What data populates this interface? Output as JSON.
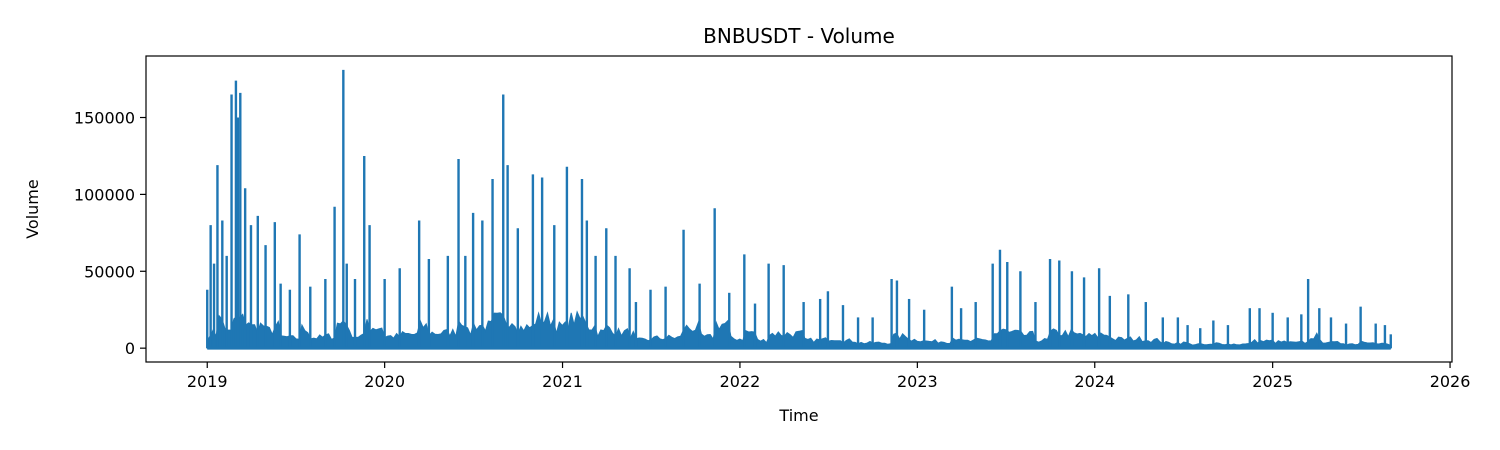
{
  "chart_data": {
    "type": "line",
    "title": "BNBUSDT - Volume",
    "xlabel": "Time",
    "ylabel": "Volume",
    "xlim": [
      "2018-08-28",
      "2026-01-05"
    ],
    "ylim": [
      -9000,
      190000
    ],
    "x_ticks": [
      "2019",
      "2020",
      "2021",
      "2022",
      "2023",
      "2024",
      "2025",
      "2026"
    ],
    "y_ticks": [
      0,
      50000,
      100000,
      150000
    ],
    "y_tick_labels": [
      "0",
      "50000",
      "100000",
      "150000"
    ],
    "grid": false,
    "series": [
      {
        "color": "#1f77b4",
        "x": [
          "2019-01-01",
          "2019-01-08",
          "2019-01-15",
          "2019-01-22",
          "2019-02-01",
          "2019-02-10",
          "2019-02-20",
          "2019-03-01",
          "2019-03-05",
          "2019-03-10",
          "2019-03-20",
          "2019-04-01",
          "2019-04-15",
          "2019-05-01",
          "2019-05-20",
          "2019-06-01",
          "2019-06-20",
          "2019-07-10",
          "2019-08-01",
          "2019-09-01",
          "2019-09-20",
          "2019-10-08",
          "2019-10-15",
          "2019-11-01",
          "2019-11-20",
          "2019-12-01",
          "2020-01-01",
          "2020-02-01",
          "2020-03-12",
          "2020-04-01",
          "2020-05-10",
          "2020-06-01",
          "2020-06-15",
          "2020-07-01",
          "2020-07-20",
          "2020-08-10",
          "2020-09-01",
          "2020-09-10",
          "2020-10-01",
          "2020-11-01",
          "2020-11-20",
          "2020-12-15",
          "2021-01-10",
          "2021-02-10",
          "2021-02-20",
          "2021-03-10",
          "2021-04-01",
          "2021-04-20",
          "2021-05-19",
          "2021-06-01",
          "2021-07-01",
          "2021-08-01",
          "2021-09-07",
          "2021-10-10",
          "2021-11-10",
          "2021-12-10",
          "2022-01-10",
          "2022-02-01",
          "2022-03-01",
          "2022-04-01",
          "2022-05-12",
          "2022-06-15",
          "2022-07-01",
          "2022-08-01",
          "2022-09-01",
          "2022-10-01",
          "2022-11-09",
          "2022-11-20",
          "2022-12-15",
          "2023-01-15",
          "2023-03-13",
          "2023-04-01",
          "2023-05-01",
          "2023-06-05",
          "2023-06-20",
          "2023-07-05",
          "2023-08-01",
          "2023-09-01",
          "2023-10-01",
          "2023-10-20",
          "2023-11-15",
          "2023-12-10",
          "2024-01-10",
          "2024-02-01",
          "2024-03-10",
          "2024-04-15",
          "2024-05-20",
          "2024-06-20",
          "2024-07-10",
          "2024-08-05",
          "2024-09-01",
          "2024-10-01",
          "2024-11-15",
          "2024-12-05",
          "2025-01-01",
          "2025-02-01",
          "2025-03-01",
          "2025-03-15",
          "2025-04-07",
          "2025-05-01",
          "2025-06-01",
          "2025-07-01",
          "2025-08-01",
          "2025-08-20",
          "2025-09-01"
        ],
        "values": [
          38000,
          80000,
          55000,
          119000,
          83000,
          60000,
          165000,
          174000,
          150000,
          166000,
          104000,
          80000,
          86000,
          67000,
          82000,
          42000,
          38000,
          74000,
          40000,
          45000,
          92000,
          181000,
          55000,
          45000,
          125000,
          80000,
          45000,
          52000,
          83000,
          58000,
          60000,
          123000,
          60000,
          88000,
          83000,
          110000,
          165000,
          119000,
          78000,
          113000,
          111000,
          80000,
          118000,
          110000,
          83000,
          60000,
          78000,
          60000,
          52000,
          30000,
          38000,
          40000,
          77000,
          42000,
          91000,
          36000,
          61000,
          29000,
          55000,
          54000,
          30000,
          32000,
          37000,
          28000,
          20000,
          20000,
          45000,
          44000,
          32000,
          25000,
          40000,
          26000,
          30000,
          55000,
          64000,
          56000,
          50000,
          30000,
          58000,
          57000,
          50000,
          46000,
          52000,
          34000,
          35000,
          30000,
          20000,
          20000,
          15000,
          13000,
          18000,
          15000,
          26000,
          26000,
          23000,
          20000,
          22000,
          45000,
          26000,
          20000,
          16000,
          27000,
          16000,
          15000,
          9000
        ]
      }
    ]
  }
}
